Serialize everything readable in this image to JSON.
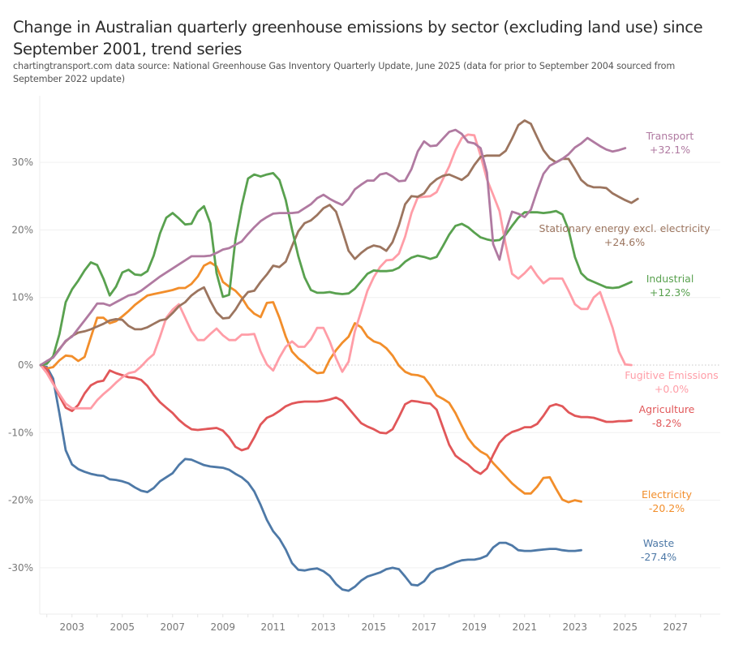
{
  "title": "Change in Australian quarterly greenhouse emissions by sector (excluding land use) since September 2001, trend series",
  "subtitle": "chartingtransport.com  data source: National Greenhouse Gas Inventory Quarterly Update, June 2025 (data for prior to September 2004 sourced from September 2022 update)",
  "chart_data": {
    "type": "line",
    "title": "Change in Australian quarterly greenhouse emissions by sector (excluding land use) since September 2001, trend series",
    "xlabel": "",
    "ylabel": "",
    "x_start": 2001.75,
    "x_step": 0.25,
    "xlim": [
      2001.75,
      2028.0
    ],
    "ylim": [
      -36,
      38
    ],
    "x_ticks": [
      "2003",
      "2005",
      "2007",
      "2009",
      "2011",
      "2013",
      "2015",
      "2017",
      "2019",
      "2021",
      "2023",
      "2025",
      "2027"
    ],
    "x_tick_values": [
      2003,
      2005,
      2007,
      2009,
      2011,
      2013,
      2015,
      2017,
      2019,
      2021,
      2023,
      2025,
      2027
    ],
    "y_ticks": [
      "30%",
      "20%",
      "10%",
      "0%",
      "-10%",
      "-20%",
      "-30%"
    ],
    "y_tick_values": [
      30,
      20,
      10,
      0,
      -10,
      -20,
      -30
    ],
    "grid": true,
    "zero_line": "dotted",
    "legend": "end-of-line labels (right)",
    "series": [
      {
        "name": "Transport",
        "end_label": "+32.1%",
        "color": "#b07aa1",
        "values": [
          0,
          0.6,
          1.1,
          2.3,
          3.6,
          4.2,
          5.4,
          6.6,
          7.8,
          9.1,
          9.1,
          8.8,
          9.3,
          9.8,
          10.3,
          10.5,
          11.0,
          11.7,
          12.4,
          13.1,
          13.7,
          14.3,
          14.9,
          15.5,
          16.1,
          16.1,
          16.1,
          16.2,
          16.6,
          17.1,
          17.3,
          17.8,
          18.3,
          19.4,
          20.4,
          21.3,
          21.9,
          22.4,
          22.5,
          22.5,
          22.5,
          22.6,
          23.2,
          23.8,
          24.7,
          25.2,
          24.6,
          24.1,
          23.7,
          24.6,
          26.0,
          26.7,
          27.3,
          27.3,
          28.2,
          28.4,
          27.9,
          27.2,
          27.3,
          29.0,
          31.6,
          33.1,
          32.4,
          32.5,
          33.5,
          34.5,
          34.8,
          34.2,
          33.0,
          32.8,
          32.1,
          28.5,
          17.9,
          15.6,
          19.8,
          22.7,
          22.4,
          21.9,
          23.0,
          25.8,
          28.3,
          29.5,
          30.0,
          30.5,
          31.2,
          32.2,
          32.8,
          33.6,
          33.0,
          32.4,
          31.9,
          31.6,
          31.8,
          32.1
        ]
      },
      {
        "name": "Stationary energy excl. electricity",
        "end_label": "+24.6%",
        "color": "#9c755f",
        "values": [
          0,
          0.5,
          1.2,
          2.4,
          3.5,
          4.3,
          4.8,
          5.0,
          5.3,
          5.7,
          6.1,
          6.6,
          6.8,
          6.7,
          5.8,
          5.3,
          5.3,
          5.6,
          6.1,
          6.6,
          6.8,
          7.7,
          8.7,
          9.3,
          10.3,
          11.0,
          11.5,
          9.5,
          7.8,
          6.9,
          7.0,
          8.2,
          9.7,
          10.8,
          11.0,
          12.3,
          13.4,
          14.7,
          14.5,
          15.3,
          17.6,
          19.8,
          21.0,
          21.4,
          22.2,
          23.2,
          23.7,
          22.7,
          19.9,
          16.9,
          15.7,
          16.6,
          17.3,
          17.7,
          17.5,
          16.9,
          18.2,
          20.7,
          23.8,
          25.0,
          24.9,
          25.4,
          26.7,
          27.5,
          28.0,
          28.2,
          27.8,
          27.4,
          28.1,
          29.6,
          30.8,
          31.0,
          31.0,
          31.0,
          31.7,
          33.5,
          35.5,
          36.2,
          35.7,
          33.7,
          31.8,
          30.6,
          30.0,
          30.5,
          30.5,
          29.0,
          27.4,
          26.6,
          26.3,
          26.3,
          26.2,
          25.4,
          24.9,
          24.4,
          24.0,
          24.6
        ]
      },
      {
        "name": "Industrial",
        "end_label": "+12.3%",
        "color": "#59a14f",
        "values": [
          0,
          0.2,
          1.3,
          4.6,
          9.3,
          11.2,
          12.5,
          14.0,
          15.2,
          14.8,
          12.8,
          10.3,
          11.6,
          13.7,
          14.1,
          13.4,
          13.3,
          13.9,
          16.2,
          19.5,
          21.8,
          22.5,
          21.7,
          20.8,
          20.9,
          22.7,
          23.5,
          21.0,
          13.6,
          10.1,
          10.4,
          18.6,
          23.6,
          27.6,
          28.2,
          27.9,
          28.2,
          28.4,
          27.4,
          24.4,
          20.1,
          16.1,
          13.0,
          11.1,
          10.7,
          10.7,
          10.8,
          10.6,
          10.5,
          10.6,
          11.3,
          12.4,
          13.5,
          14.0,
          13.9,
          13.9,
          14.0,
          14.4,
          15.3,
          15.9,
          16.2,
          16.0,
          15.7,
          16.0,
          17.6,
          19.3,
          20.6,
          20.9,
          20.4,
          19.6,
          18.9,
          18.6,
          18.4,
          18.5,
          19.3,
          20.6,
          21.8,
          22.6,
          22.6,
          22.6,
          22.5,
          22.6,
          22.8,
          22.3,
          20.0,
          16.0,
          13.6,
          12.7,
          12.3,
          11.9,
          11.5,
          11.4,
          11.5,
          11.9,
          12.3
        ]
      },
      {
        "name": "Fugitive Emissions",
        "end_label": "+0.0%",
        "color": "#ff9da7",
        "values": [
          0,
          -1.2,
          -2.8,
          -4.3,
          -5.7,
          -6.4,
          -6.4,
          -6.4,
          -6.4,
          -5.2,
          -4.3,
          -3.5,
          -2.6,
          -1.8,
          -1.2,
          -1.0,
          -0.2,
          0.8,
          1.6,
          4.2,
          7.0,
          8.2,
          9.0,
          7.0,
          5.0,
          3.7,
          3.7,
          4.6,
          5.4,
          4.4,
          3.7,
          3.7,
          4.5,
          4.5,
          4.6,
          2.0,
          0.1,
          -0.8,
          1.1,
          2.7,
          3.5,
          2.7,
          2.7,
          3.8,
          5.5,
          5.5,
          3.5,
          1.0,
          -1.0,
          0.5,
          5.0,
          8.0,
          11.0,
          13.0,
          14.5,
          15.5,
          15.6,
          16.5,
          19.0,
          22.5,
          24.8,
          24.9,
          25.0,
          25.6,
          27.5,
          29.4,
          31.8,
          33.6,
          34.1,
          34.0,
          31.0,
          27.5,
          25.2,
          22.8,
          17.8,
          13.5,
          12.8,
          13.6,
          14.6,
          13.2,
          12.1,
          12.8,
          12.8,
          12.8,
          11.0,
          9.0,
          8.3,
          8.3,
          10.0,
          10.8,
          8.2,
          5.5,
          2.0,
          0.1,
          0.0
        ]
      },
      {
        "name": "Agriculture",
        "end_label": "-8.2%",
        "color": "#e15759",
        "values": [
          0,
          -0.6,
          -2.6,
          -4.6,
          -6.3,
          -6.8,
          -5.9,
          -4.2,
          -3.0,
          -2.5,
          -2.3,
          -0.8,
          -1.2,
          -1.5,
          -1.8,
          -1.9,
          -2.2,
          -3.1,
          -4.4,
          -5.5,
          -6.3,
          -7.1,
          -8.1,
          -8.9,
          -9.5,
          -9.6,
          -9.5,
          -9.4,
          -9.3,
          -9.7,
          -10.7,
          -12.1,
          -12.6,
          -12.3,
          -10.7,
          -8.8,
          -7.8,
          -7.4,
          -6.8,
          -6.1,
          -5.7,
          -5.5,
          -5.4,
          -5.4,
          -5.4,
          -5.3,
          -5.1,
          -4.8,
          -5.3,
          -6.4,
          -7.5,
          -8.6,
          -9.1,
          -9.5,
          -10.0,
          -10.1,
          -9.5,
          -7.7,
          -5.8,
          -5.3,
          -5.4,
          -5.6,
          -5.7,
          -6.6,
          -9.2,
          -11.8,
          -13.4,
          -14.1,
          -14.7,
          -15.6,
          -16.1,
          -15.3,
          -13.3,
          -11.5,
          -10.5,
          -9.9,
          -9.6,
          -9.2,
          -9.2,
          -8.7,
          -7.5,
          -6.1,
          -5.8,
          -6.1,
          -7.0,
          -7.5,
          -7.7,
          -7.7,
          -7.8,
          -8.1,
          -8.4,
          -8.4,
          -8.3,
          -8.3,
          -8.2
        ]
      },
      {
        "name": "Electricity",
        "end_label": "-20.2%",
        "color": "#f28e2b",
        "values": [
          0,
          -0.5,
          -0.3,
          0.7,
          1.4,
          1.3,
          0.6,
          1.2,
          4.1,
          7.0,
          7.0,
          6.2,
          6.5,
          7.2,
          8.0,
          8.9,
          9.6,
          10.3,
          10.5,
          10.7,
          10.9,
          11.1,
          11.4,
          11.4,
          12.0,
          13.1,
          14.7,
          15.2,
          14.6,
          12.3,
          11.6,
          11.0,
          10.0,
          8.5,
          7.6,
          7.1,
          9.2,
          9.3,
          7.0,
          4.2,
          2.0,
          1.0,
          0.3,
          -0.6,
          -1.2,
          -1.1,
          0.8,
          2.2,
          3.3,
          4.2,
          6.2,
          5.6,
          4.2,
          3.5,
          3.2,
          2.5,
          1.4,
          -0.1,
          -1.0,
          -1.4,
          -1.5,
          -1.8,
          -3.0,
          -4.5,
          -5.0,
          -5.6,
          -7.1,
          -9.0,
          -10.8,
          -12.0,
          -12.8,
          -13.3,
          -14.5,
          -15.5,
          -16.5,
          -17.5,
          -18.3,
          -19.0,
          -19.0,
          -18.0,
          -16.7,
          -16.6,
          -18.3,
          -19.9,
          -20.3,
          -20.0,
          -20.2
        ]
      },
      {
        "name": "Waste",
        "end_label": "-27.4%",
        "color": "#4e79a7",
        "values": [
          0,
          -0.3,
          -2.0,
          -7.2,
          -12.6,
          -14.7,
          -15.4,
          -15.8,
          -16.1,
          -16.3,
          -16.4,
          -16.9,
          -17.0,
          -17.2,
          -17.5,
          -18.1,
          -18.6,
          -18.8,
          -18.2,
          -17.2,
          -16.6,
          -16.0,
          -14.8,
          -13.9,
          -14.0,
          -14.4,
          -14.8,
          -15.0,
          -15.1,
          -15.2,
          -15.5,
          -16.1,
          -16.6,
          -17.4,
          -18.7,
          -20.7,
          -22.9,
          -24.6,
          -25.7,
          -27.3,
          -29.3,
          -30.3,
          -30.4,
          -30.2,
          -30.1,
          -30.5,
          -31.2,
          -32.4,
          -33.2,
          -33.4,
          -32.8,
          -31.9,
          -31.3,
          -31.0,
          -30.7,
          -30.2,
          -30.0,
          -30.2,
          -31.3,
          -32.5,
          -32.6,
          -32.0,
          -30.8,
          -30.2,
          -30.0,
          -29.6,
          -29.2,
          -28.9,
          -28.8,
          -28.8,
          -28.6,
          -28.2,
          -27.0,
          -26.3,
          -26.3,
          -26.7,
          -27.4,
          -27.5,
          -27.5,
          -27.4,
          -27.3,
          -27.2,
          -27.2,
          -27.4,
          -27.5,
          -27.5,
          -27.4
        ]
      }
    ]
  }
}
